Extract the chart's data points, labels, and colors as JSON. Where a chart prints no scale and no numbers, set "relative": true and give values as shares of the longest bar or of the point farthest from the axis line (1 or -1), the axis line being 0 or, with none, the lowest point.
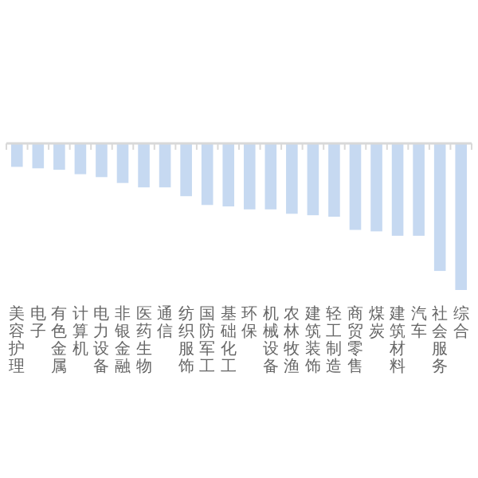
{
  "chart_data": {
    "type": "bar",
    "relative": true,
    "color": "#c6d9f1",
    "categories": [
      "美容护理",
      "电子",
      "有色金属",
      "计算机",
      "电力设备",
      "非银金融",
      "医药生物",
      "通信",
      "纺织服饰",
      "国防军工",
      "基础化工",
      "环保",
      "机械设备",
      "农林牧渔",
      "建筑装饰",
      "轻工制造",
      "商贸零售",
      "煤炭",
      "建筑材料",
      "汽车",
      "社会服务",
      "综合"
    ],
    "values": [
      -0.16,
      -0.17,
      -0.18,
      -0.21,
      -0.23,
      -0.27,
      -0.3,
      -0.3,
      -0.36,
      -0.42,
      -0.43,
      -0.45,
      -0.45,
      -0.48,
      -0.49,
      -0.5,
      -0.59,
      -0.6,
      -0.63,
      -0.63,
      -0.87,
      -1
    ]
  }
}
